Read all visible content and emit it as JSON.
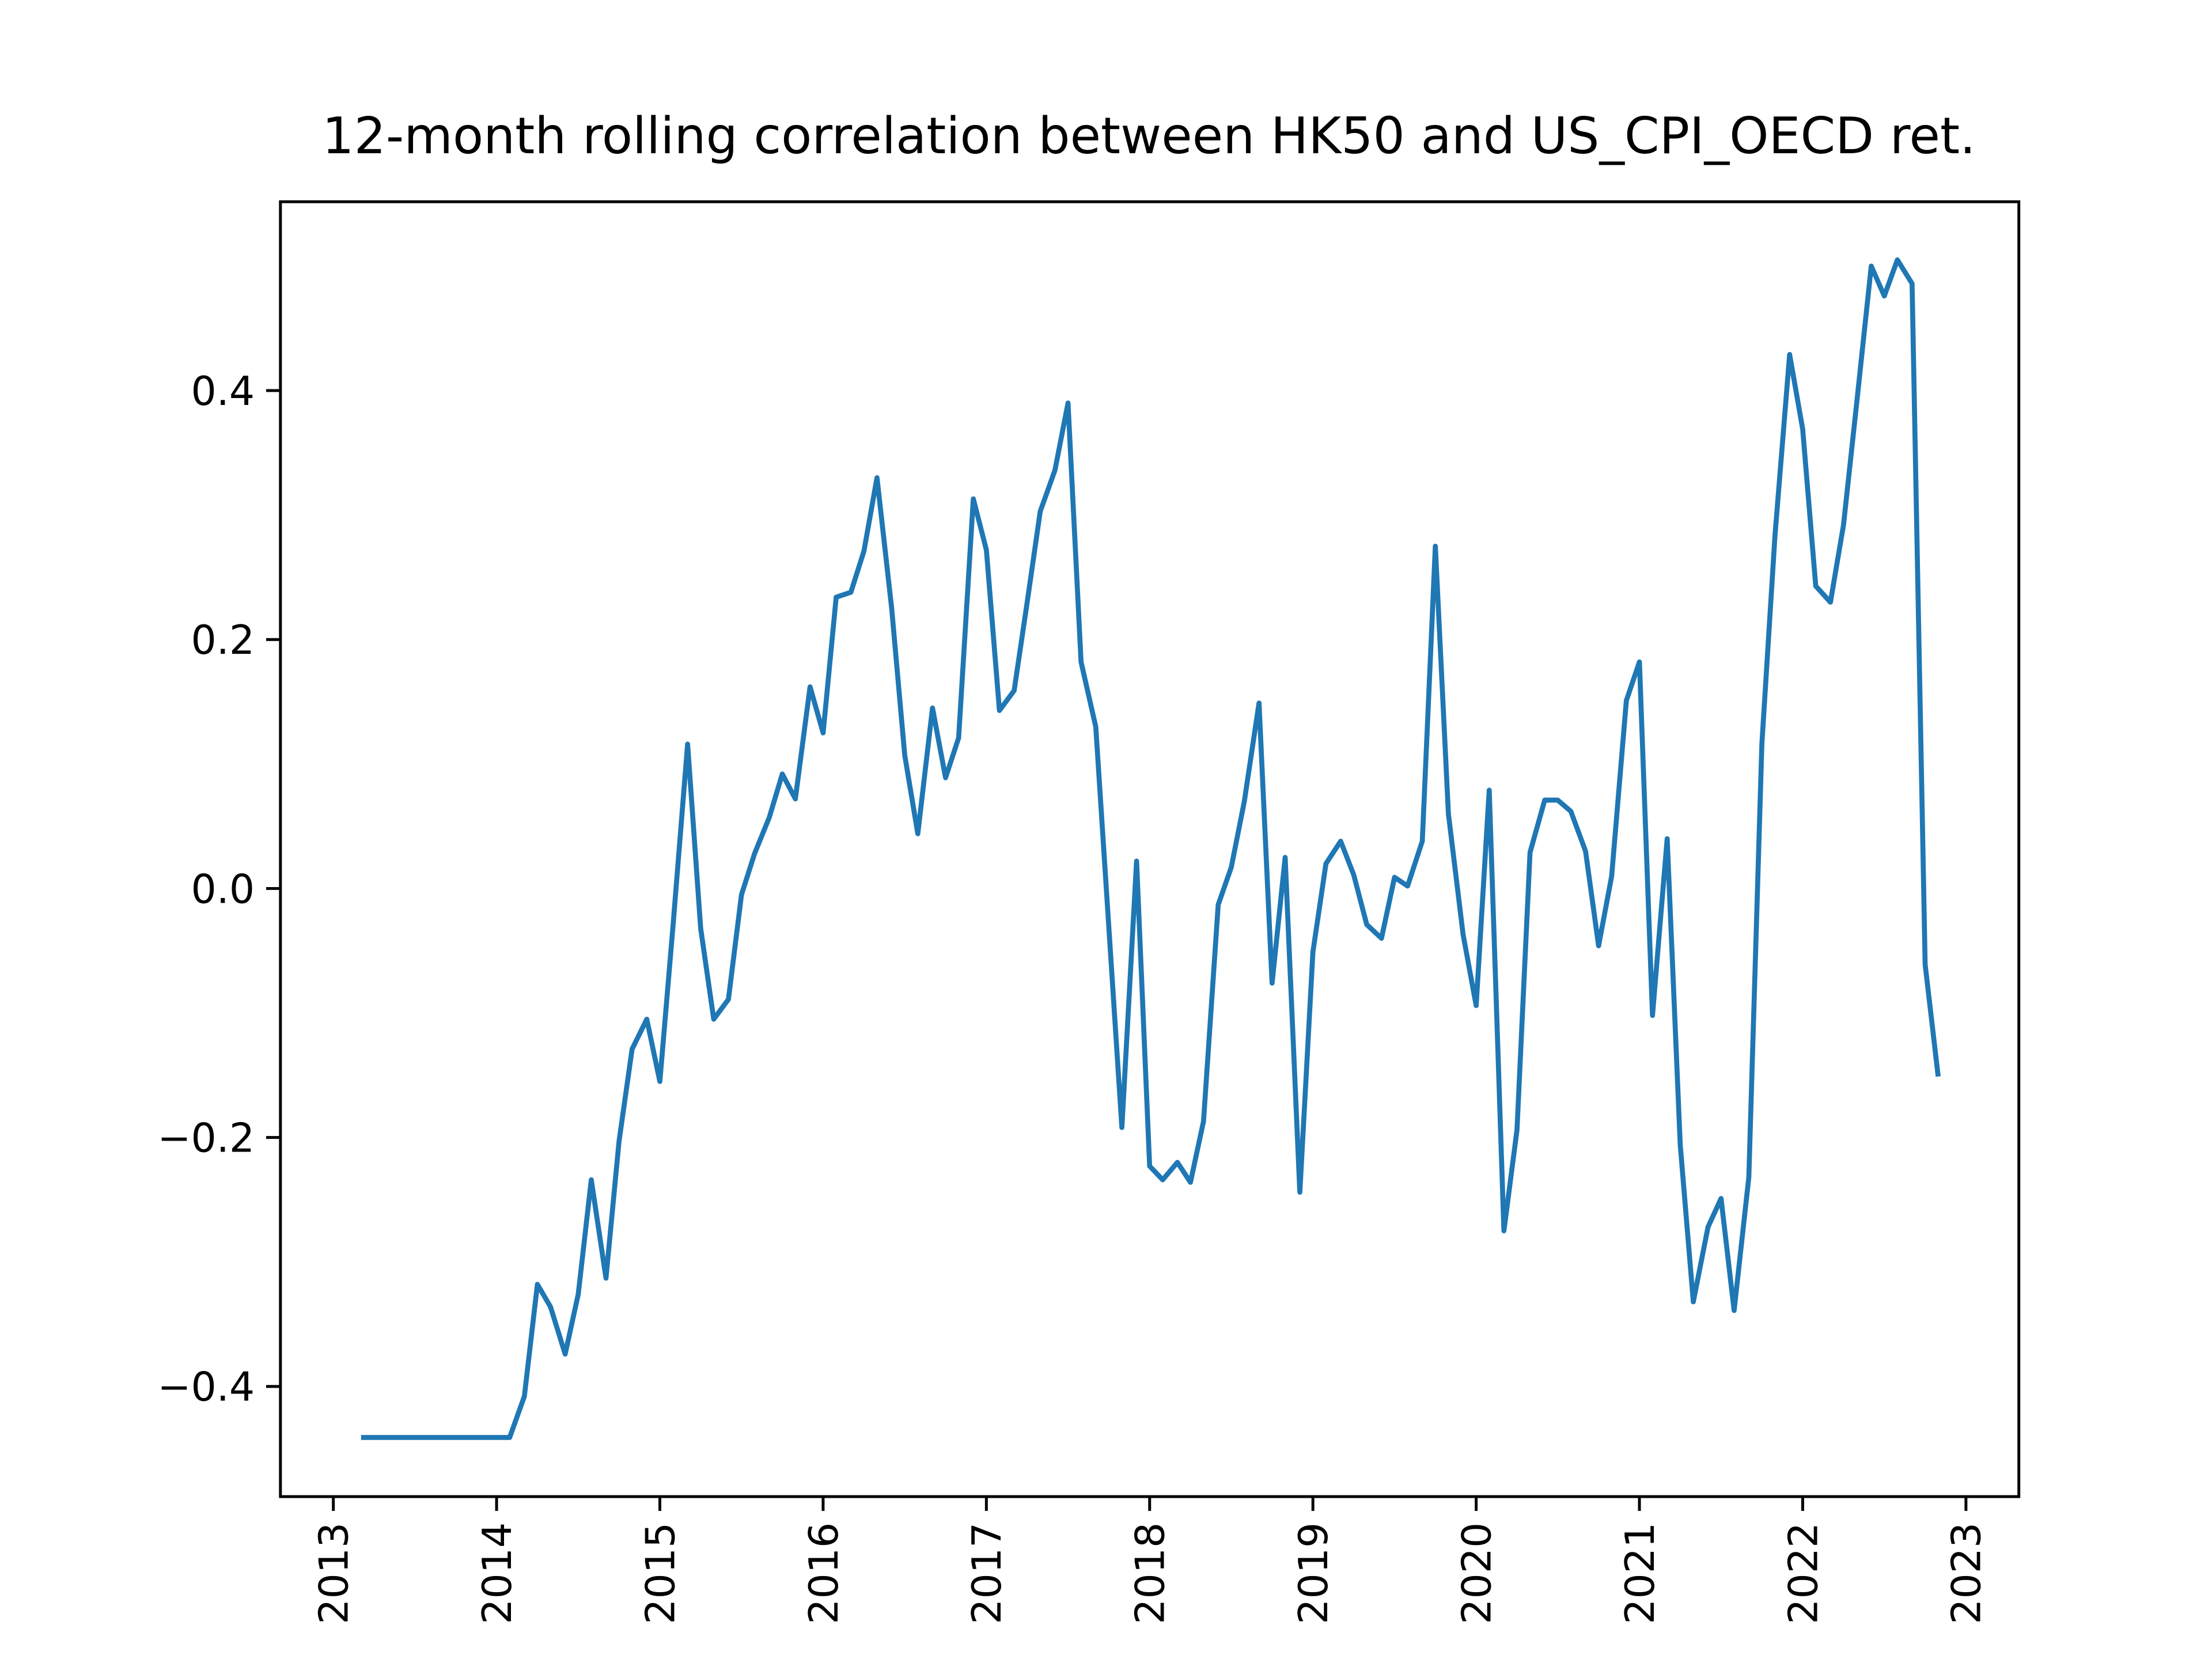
{
  "chart_data": {
    "type": "line",
    "title": "12-month rolling correlation between HK50 and US_CPI_OECD ret.",
    "x": [
      2013.17,
      2013.25,
      2013.33,
      2013.42,
      2013.5,
      2013.58,
      2013.67,
      2013.75,
      2013.83,
      2013.92,
      2014.0,
      2014.08,
      2014.17,
      2014.25,
      2014.33,
      2014.42,
      2014.5,
      2014.58,
      2014.67,
      2014.75,
      2014.83,
      2014.92,
      2015.0,
      2015.08,
      2015.17,
      2015.25,
      2015.33,
      2015.42,
      2015.5,
      2015.58,
      2015.67,
      2015.75,
      2015.83,
      2015.92,
      2016.0,
      2016.08,
      2016.17,
      2016.25,
      2016.33,
      2016.42,
      2016.5,
      2016.58,
      2016.67,
      2016.75,
      2016.83,
      2016.92,
      2017.0,
      2017.08,
      2017.17,
      2017.25,
      2017.33,
      2017.42,
      2017.5,
      2017.58,
      2017.67,
      2017.75,
      2017.83,
      2017.92,
      2018.0,
      2018.08,
      2018.17,
      2018.25,
      2018.33,
      2018.42,
      2018.5,
      2018.58,
      2018.67,
      2018.75,
      2018.83,
      2018.92,
      2019.0,
      2019.08,
      2019.17,
      2019.25,
      2019.33,
      2019.42,
      2019.5,
      2019.58,
      2019.67,
      2019.75,
      2019.83,
      2019.92,
      2020.0,
      2020.08,
      2020.17,
      2020.25,
      2020.33,
      2020.42,
      2020.5,
      2020.58,
      2020.67,
      2020.75,
      2020.83,
      2020.92,
      2021.0,
      2021.08,
      2021.17,
      2021.25,
      2021.33,
      2021.42,
      2021.5,
      2021.58,
      2021.67,
      2021.75,
      2021.83,
      2021.92,
      2022.0,
      2022.08,
      2022.17,
      2022.25,
      2022.33,
      2022.42,
      2022.5,
      2022.58,
      2022.67,
      2022.75,
      2022.83
    ],
    "series": [
      {
        "color": "#1f77b4",
        "values": [
          -0.441,
          -0.441,
          -0.441,
          -0.441,
          -0.441,
          -0.441,
          -0.441,
          -0.441,
          -0.441,
          -0.441,
          -0.441,
          -0.441,
          -0.408,
          -0.318,
          -0.336,
          -0.374,
          -0.326,
          -0.234,
          -0.313,
          -0.203,
          -0.129,
          -0.105,
          -0.155,
          -0.031,
          0.116,
          -0.032,
          -0.105,
          -0.089,
          -0.005,
          0.028,
          0.057,
          0.092,
          0.072,
          0.162,
          0.125,
          0.234,
          0.238,
          0.271,
          0.33,
          0.225,
          0.107,
          0.044,
          0.145,
          0.089,
          0.121,
          0.313,
          0.272,
          0.143,
          0.159,
          0.23,
          0.303,
          0.336,
          0.39,
          0.182,
          0.13,
          -0.031,
          -0.192,
          0.022,
          -0.223,
          -0.234,
          -0.22,
          -0.236,
          -0.187,
          -0.013,
          0.017,
          0.07,
          0.149,
          -0.076,
          0.025,
          -0.244,
          -0.051,
          0.02,
          0.038,
          0.011,
          -0.029,
          -0.04,
          0.009,
          0.002,
          0.038,
          0.275,
          0.06,
          -0.037,
          -0.094,
          0.079,
          -0.275,
          -0.194,
          0.029,
          0.071,
          0.071,
          0.062,
          0.03,
          -0.046,
          0.01,
          0.151,
          0.182,
          -0.102,
          0.04,
          -0.206,
          -0.332,
          -0.272,
          -0.249,
          -0.339,
          -0.232,
          0.116,
          0.283,
          0.429,
          0.369,
          0.243,
          0.23,
          0.292,
          0.389,
          0.5,
          0.476,
          0.505,
          0.486,
          -0.061,
          -0.151
        ]
      }
    ],
    "xlim": [
      2012.676,
      2023.324
    ],
    "ylim": [
      -0.4885,
      0.5517
    ],
    "xticks": [
      2013,
      2014,
      2015,
      2016,
      2017,
      2018,
      2019,
      2020,
      2021,
      2022,
      2023
    ],
    "yticks": [
      {
        "value": -0.4,
        "label": "−0.4"
      },
      {
        "value": -0.2,
        "label": "−0.2"
      },
      {
        "value": 0,
        "label": "0.0"
      },
      0.2,
      0.4
    ],
    "grid": false
  }
}
